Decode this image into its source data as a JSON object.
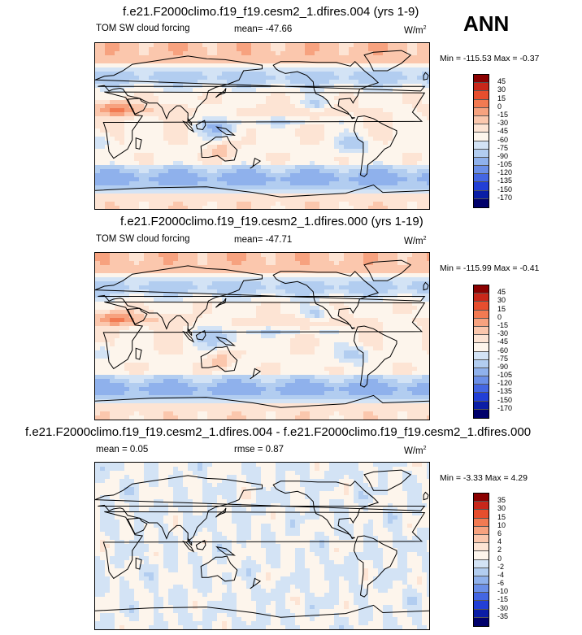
{
  "header": {
    "season": "ANN"
  },
  "panels": [
    {
      "title": "f.e21.F2000climo.f19_f19.cesm2_1.dfires.004 (yrs 1-9)",
      "variable": "TOM SW cloud forcing",
      "mean": "mean= -47.66",
      "units": "W/m",
      "units_sup": "2",
      "minmax": "Min = -115.53 Max =  -0.37",
      "levels": [
        "45",
        "30",
        "15",
        "0",
        "-15",
        "-30",
        "-45",
        "-60",
        "-75",
        "-90",
        "-105",
        "-120",
        "-135",
        "-150",
        "-170"
      ],
      "colors": [
        "#8b0000",
        "#c8271a",
        "#e64e2e",
        "#f27a52",
        "#f7a27f",
        "#fbc7ad",
        "#fde4d4",
        "#fdf5ec",
        "#d3e3f5",
        "#b2cdf0",
        "#8fb1ec",
        "#6b8fe8",
        "#4466e3",
        "#223fd6",
        "#0b1ea6",
        "#00006b"
      ]
    },
    {
      "title": "f.e21.F2000climo.f19_f19.cesm2_1.dfires.000 (yrs 1-19)",
      "variable": "TOM SW cloud forcing",
      "mean": "mean= -47.71",
      "units": "W/m",
      "units_sup": "2",
      "minmax": "Min = -115.99 Max =  -0.41",
      "levels": [
        "45",
        "30",
        "15",
        "0",
        "-15",
        "-30",
        "-45",
        "-60",
        "-75",
        "-90",
        "-105",
        "-120",
        "-135",
        "-150",
        "-170"
      ],
      "colors": [
        "#8b0000",
        "#c8271a",
        "#e64e2e",
        "#f27a52",
        "#f7a27f",
        "#fbc7ad",
        "#fde4d4",
        "#fdf5ec",
        "#d3e3f5",
        "#b2cdf0",
        "#8fb1ec",
        "#6b8fe8",
        "#4466e3",
        "#223fd6",
        "#0b1ea6",
        "#00006b"
      ]
    },
    {
      "title": "f.e21.F2000climo.f19_f19.cesm2_1.dfires.004 - f.e21.F2000climo.f19_f19.cesm2_1.dfires.000",
      "mean": "mean =    0.05",
      "rmse": "rmse =    0.87",
      "units": "W/m",
      "units_sup": "2",
      "minmax": "Min =  -3.33 Max =   4.29",
      "levels": [
        "35",
        "30",
        "15",
        "10",
        "6",
        "4",
        "2",
        "0",
        "-2",
        "-4",
        "-6",
        "-10",
        "-15",
        "-30",
        "-35"
      ],
      "colors": [
        "#8b0000",
        "#c8271a",
        "#e64e2e",
        "#f27a52",
        "#f7a27f",
        "#fbc7ad",
        "#fde4d4",
        "#fdf5ec",
        "#d3e3f5",
        "#b2cdf0",
        "#8fb1ec",
        "#6b8fe8",
        "#4466e3",
        "#223fd6",
        "#0b1ea6",
        "#00006b"
      ]
    }
  ],
  "chart_data": [
    {
      "type": "heatmap",
      "title": "f.e21.F2000climo.f19_f19.cesm2_1.dfires.004 (yrs 1-9)",
      "field": "TOM SW cloud forcing",
      "units": "W/m2",
      "mean": -47.66,
      "min": -115.53,
      "max": -0.37,
      "contour_levels": [
        45,
        30,
        15,
        0,
        -15,
        -30,
        -45,
        -60,
        -75,
        -90,
        -105,
        -120,
        -135,
        -150,
        -170
      ]
    },
    {
      "type": "heatmap",
      "title": "f.e21.F2000climo.f19_f19.cesm2_1.dfires.000 (yrs 1-19)",
      "field": "TOM SW cloud forcing",
      "units": "W/m2",
      "mean": -47.71,
      "min": -115.99,
      "max": -0.41,
      "contour_levels": [
        45,
        30,
        15,
        0,
        -15,
        -30,
        -45,
        -60,
        -75,
        -90,
        -105,
        -120,
        -135,
        -150,
        -170
      ]
    },
    {
      "type": "heatmap",
      "title": "f.e21.F2000climo.f19_f19.cesm2_1.dfires.004 - f.e21.F2000climo.f19_f19.cesm2_1.dfires.000",
      "units": "W/m2",
      "mean": 0.05,
      "rmse": 0.87,
      "min": -3.33,
      "max": 4.29,
      "contour_levels": [
        35,
        30,
        15,
        10,
        6,
        4,
        2,
        0,
        -2,
        -4,
        -6,
        -10,
        -15,
        -30,
        -35
      ]
    }
  ]
}
